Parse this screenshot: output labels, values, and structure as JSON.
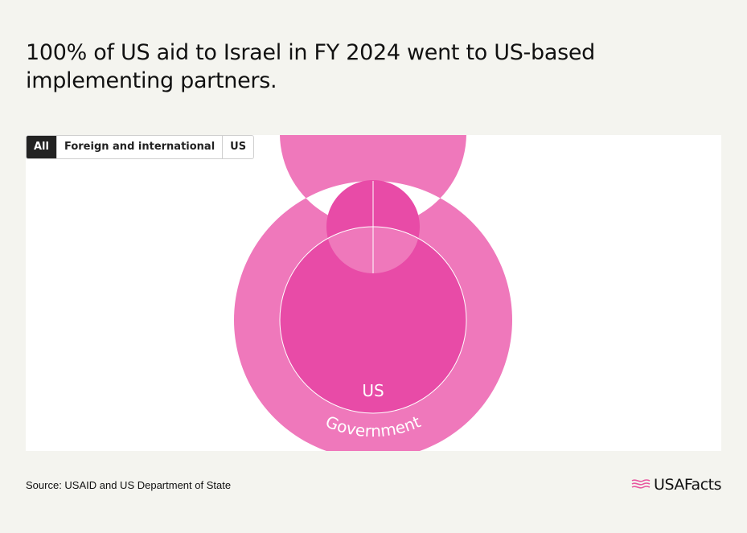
{
  "title": "100% of US aid to Israel in FY 2024 went to US-based implementing partners.",
  "tabs": [
    {
      "label": "All",
      "active": true
    },
    {
      "label": "Foreign and international",
      "active": false
    },
    {
      "label": "US",
      "active": false
    }
  ],
  "footer": {
    "source": "Source: USAID and US Department of State",
    "brand": "USAFacts"
  },
  "colors": {
    "inner_ring": "#e84ba7",
    "outer_ring": "#ef78bb",
    "flag_icon": "#e8559f"
  },
  "chart_data": {
    "type": "sunburst",
    "inner": [
      {
        "label": "US",
        "share": 100
      }
    ],
    "outer": [
      {
        "label": "Government",
        "share": 100
      }
    ]
  }
}
